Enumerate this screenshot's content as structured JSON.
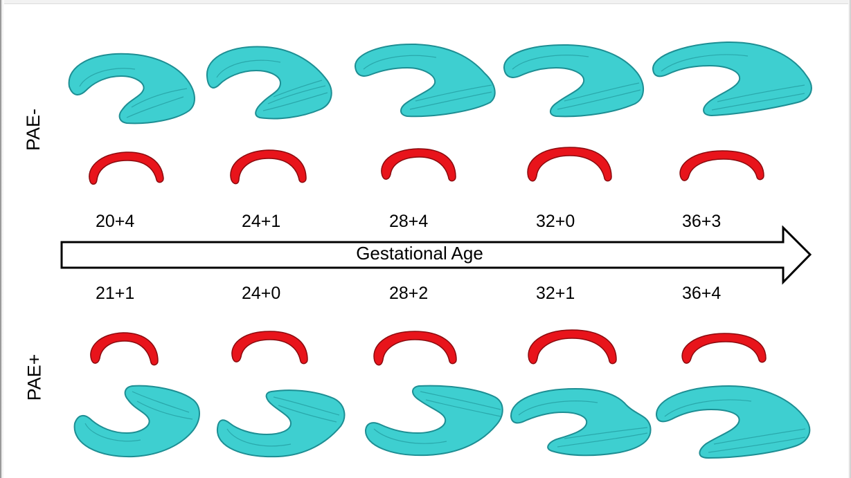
{
  "rows": {
    "top": {
      "label": "PAE-",
      "ages": [
        "20+4",
        "24+1",
        "28+4",
        "32+0",
        "36+3"
      ]
    },
    "bottom": {
      "label": "PAE+",
      "ages": [
        "21+1",
        "24+0",
        "28+2",
        "32+1",
        "36+4"
      ]
    }
  },
  "arrow": {
    "label": "Gestational Age"
  },
  "colors": {
    "ventricle": "#3ecfd0",
    "ventricle_shade": "#1d8e93",
    "corpus_callosum": "#e8141b",
    "corpus_callosum_shade": "#8a0a0e"
  }
}
